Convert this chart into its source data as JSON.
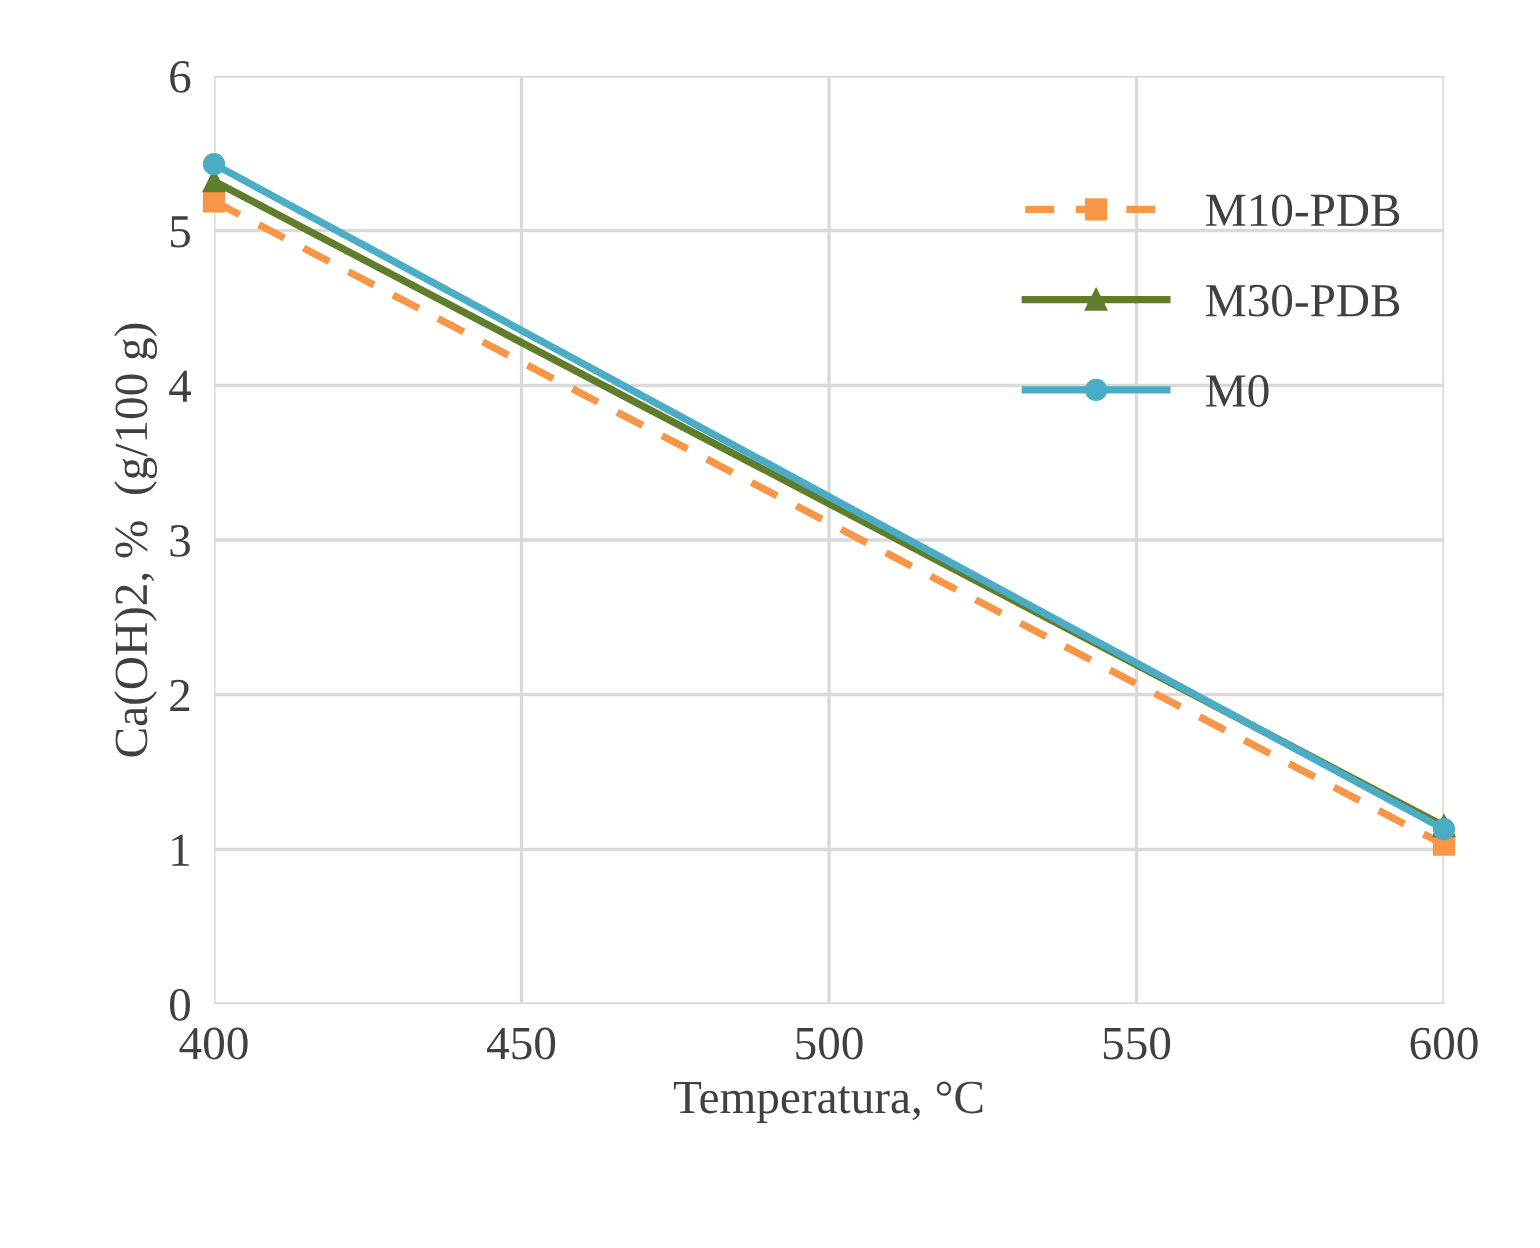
{
  "chart_data": {
    "type": "line",
    "xlabel": "Temperatura, °C",
    "ylabel": "Ca(OH)2, %  (g/100 g)",
    "xlim": [
      400,
      600
    ],
    "xticks": [
      400,
      450,
      500,
      550,
      600
    ],
    "ylim": [
      0,
      6
    ],
    "yticks": [
      0,
      1,
      2,
      3,
      4,
      5,
      6
    ],
    "grid": true,
    "legend": "top right",
    "x": [
      400,
      600
    ],
    "series": [
      {
        "name": "M10-PDB",
        "color": "#f79646",
        "values": [
          5.19,
          1.03
        ],
        "marker": "square",
        "line_style": "dashed"
      },
      {
        "name": "M30-PDB",
        "color": "#5f7d2a",
        "values": [
          5.32,
          1.15
        ],
        "marker": "triangle",
        "line_style": "solid"
      },
      {
        "name": "M0",
        "color": "#4bacc6",
        "values": [
          5.43,
          1.13
        ],
        "marker": "circle",
        "line_style": "solid"
      }
    ]
  }
}
